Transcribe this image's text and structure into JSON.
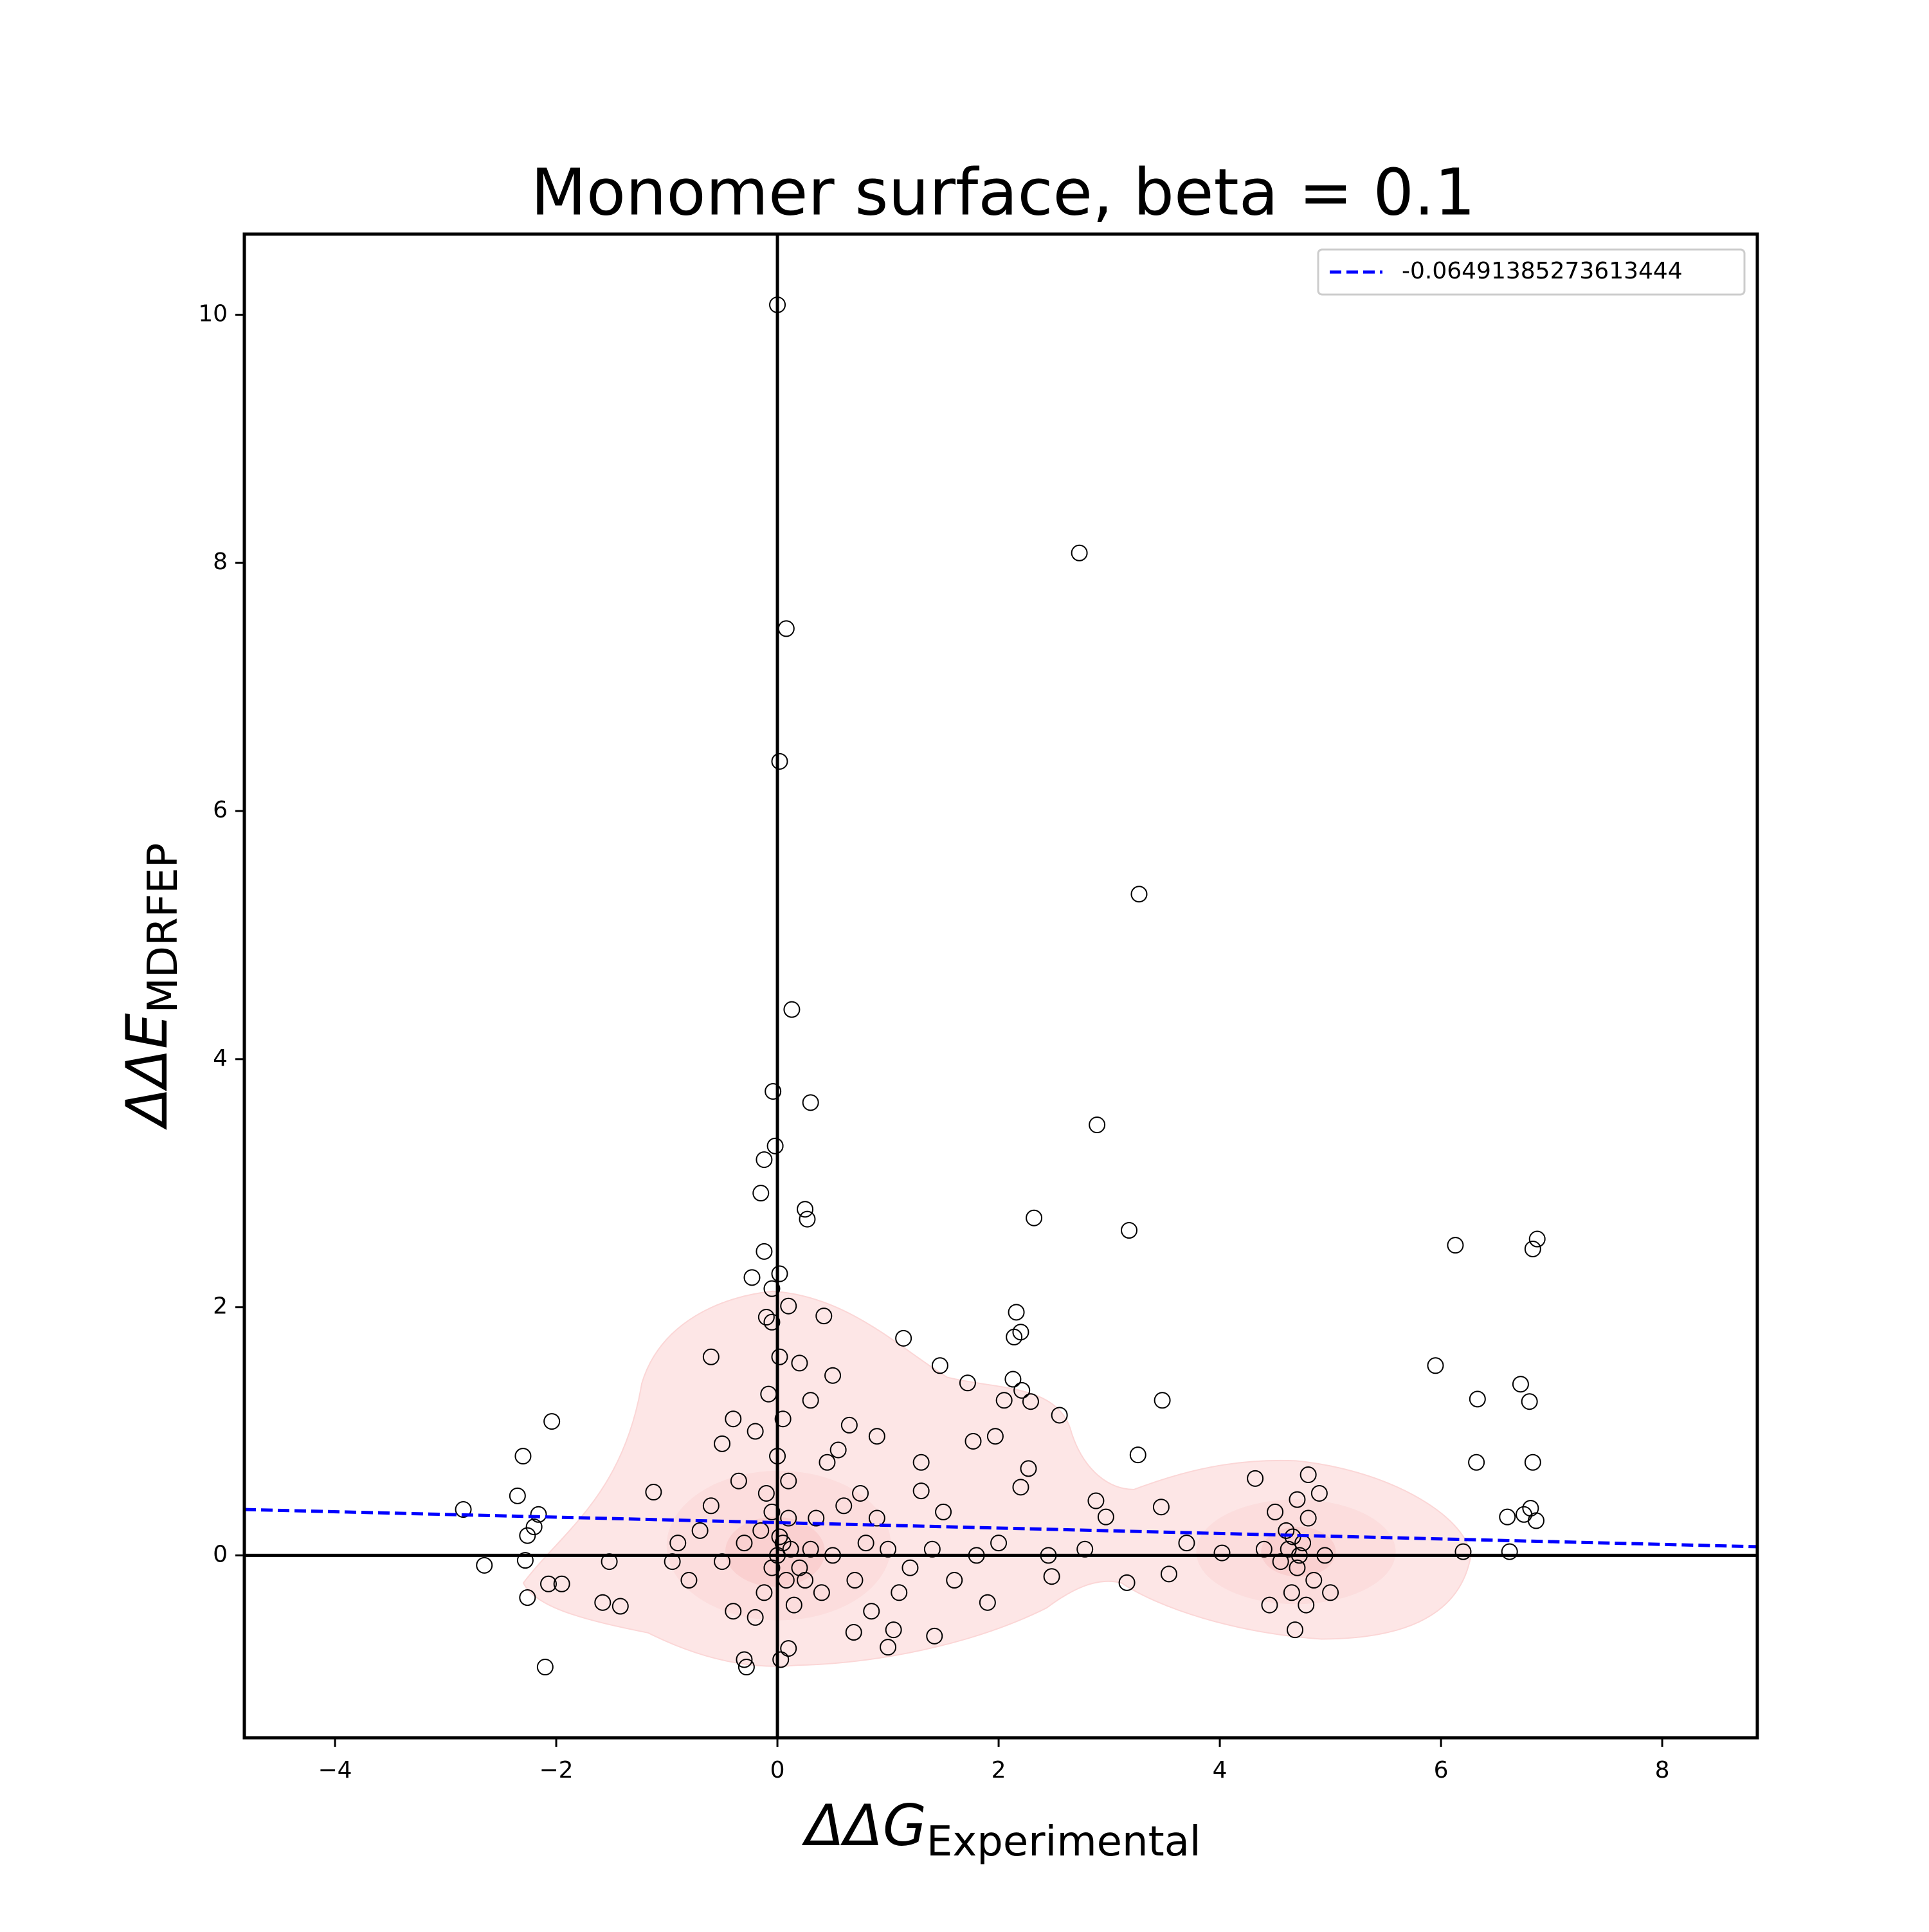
{
  "chart_data": {
    "type": "scatter",
    "title": "Monomer surface, beta = 0.1",
    "xlabel": "ΔΔG",
    "xlabel_sub": "Experimental",
    "ylabel": "ΔΔE",
    "ylabel_sub": "MDRFEP",
    "xlim": [
      -4.82,
      8.86
    ],
    "ylim": [
      -1.47,
      10.65
    ],
    "xticks": [
      {
        "value": -4,
        "label": "−4"
      },
      {
        "value": -2,
        "label": "−2"
      },
      0,
      2,
      4,
      6,
      8
    ],
    "yticks": [
      0,
      2,
      4,
      6,
      8,
      10
    ],
    "hlines": [
      0
    ],
    "vlines": [
      0
    ],
    "color": "#000000",
    "x": [
      0,
      2.73,
      0.08,
      0.02,
      3.27,
      0.13,
      -0.04,
      0.3,
      2.89,
      -0.02,
      -0.12,
      -0.15,
      0.25,
      0.27,
      2.32,
      3.18,
      6.13,
      6.87,
      6.83,
      -0.12,
      0.02,
      -0.23,
      -0.05,
      0.1,
      0.42,
      2.16,
      -0.1,
      -0.05,
      2.2,
      2.14,
      1.14,
      -0.6,
      0.2,
      1.47,
      5.95,
      1.72,
      6.72,
      2.13,
      2.21,
      3.48,
      6.33,
      6.8,
      2.55,
      -2.04,
      2.05,
      2.29,
      0.9,
      -2.3,
      3.26,
      6.32,
      6.83,
      1.77,
      1.97,
      2.27,
      -2.35,
      2.88,
      3.47,
      6.6,
      6.75,
      6.81,
      6.86,
      -2.16,
      -2.84,
      -2.2,
      -2.26,
      -2.65,
      -2.28,
      -1.95,
      -2.07,
      -2.26,
      -2.1,
      -1.12,
      -1.58,
      -1.42,
      -1.52,
      3.54,
      3.16,
      2.78,
      2.97,
      3.7,
      4.02,
      4.32,
      6.2,
      6.62,
      2.48,
      1.9,
      1.0,
      0.69,
      1.42,
      -0.28,
      0.1,
      0.03,
      -0.3,
      4.6,
      4.7,
      4.8,
      4.65,
      4.75,
      4.55,
      4.9,
      4.85,
      4.7,
      4.62,
      4.78,
      4.68,
      4.5,
      4.95,
      5.0,
      4.4,
      4.45,
      4.8,
      4.72,
      4.66,
      0,
      0.05,
      -0.05,
      0.1,
      -0.1,
      0,
      0.05,
      -0.08,
      0.02,
      -0.15,
      0.2,
      0.3,
      0.5,
      -0.3,
      -0.5,
      -0.7,
      -0.8,
      0.4,
      0.6,
      0.7,
      0.8,
      1.0,
      1.2,
      1.4,
      1.6,
      1.5,
      1.3,
      0.9,
      0.45,
      0.5,
      0.3,
      -0.2,
      -0.4,
      -0.5,
      -0.35,
      -0.6,
      -0.9,
      -0.95,
      0.15,
      -0.2,
      -0.4,
      0.25,
      0.35,
      0.55,
      0.65,
      0.75,
      1.1,
      1.3,
      1.8,
      2.0,
      2.2,
      2.45,
      0.85,
      1.05,
      0.1,
      -0.05,
      0.08,
      -0.12,
      0.02,
      0.12
    ],
    "y": [
      10.08,
      8.08,
      7.47,
      6.4,
      5.33,
      4.4,
      3.74,
      3.65,
      3.47,
      3.3,
      3.19,
      2.92,
      2.79,
      2.71,
      2.72,
      2.62,
      2.5,
      2.55,
      2.47,
      2.45,
      2.27,
      2.24,
      2.15,
      2.01,
      1.93,
      1.96,
      1.92,
      1.88,
      1.8,
      1.76,
      1.75,
      1.6,
      1.55,
      1.53,
      1.53,
      1.39,
      1.38,
      1.42,
      1.33,
      1.25,
      1.26,
      1.24,
      1.13,
      1.08,
      1.25,
      1.24,
      0.96,
      0.8,
      0.81,
      0.75,
      0.75,
      0.92,
      0.96,
      0.7,
      0.48,
      0.44,
      0.39,
      0.31,
      0.33,
      0.38,
      0.28,
      0.33,
      0.37,
      0.23,
      0.16,
      -0.08,
      -0.04,
      -0.23,
      -0.23,
      -0.34,
      -0.9,
      0.51,
      -0.38,
      -0.41,
      -0.05,
      -0.15,
      -0.22,
      0.05,
      0.31,
      0.1,
      0.02,
      0.62,
      0.03,
      0.03,
      -0.17,
      -0.38,
      -0.74,
      -0.62,
      -0.65,
      -0.9,
      -0.75,
      -0.84,
      -0.84,
      0.2,
      -0.1,
      0.3,
      -0.3,
      0.1,
      -0.05,
      0.5,
      -0.2,
      0.45,
      0.05,
      -0.4,
      -0.6,
      0.35,
      0,
      -0.3,
      0.05,
      -0.4,
      0.65,
      0,
      0.15,
      0,
      0.1,
      -0.1,
      0.3,
      0.5,
      0.8,
      1.1,
      1.3,
      1.6,
      0.2,
      -0.1,
      0.05,
      0,
      0.1,
      -0.05,
      0.2,
      -0.2,
      -0.3,
      0.4,
      -0.2,
      0.1,
      0.05,
      -0.1,
      0.05,
      -0.2,
      0.35,
      0.52,
      0.3,
      0.75,
      1.45,
      1.25,
      1.0,
      1.1,
      0.9,
      0.6,
      0.4,
      0.1,
      -0.05,
      -0.4,
      -0.5,
      -0.45,
      -0.2,
      0.3,
      0.85,
      1.05,
      0.5,
      -0.3,
      0.75,
      0,
      0.1,
      0.55,
      0,
      -0.45,
      -0.6,
      0.6,
      0.35,
      -0.2,
      -0.3,
      0.15,
      0.05
    ],
    "fit": {
      "name": "-0.06491385273613444",
      "color": "#0000ff",
      "x": [
        -4.82,
        8.86
      ],
      "y": [
        0.37,
        0.07
      ]
    }
  }
}
